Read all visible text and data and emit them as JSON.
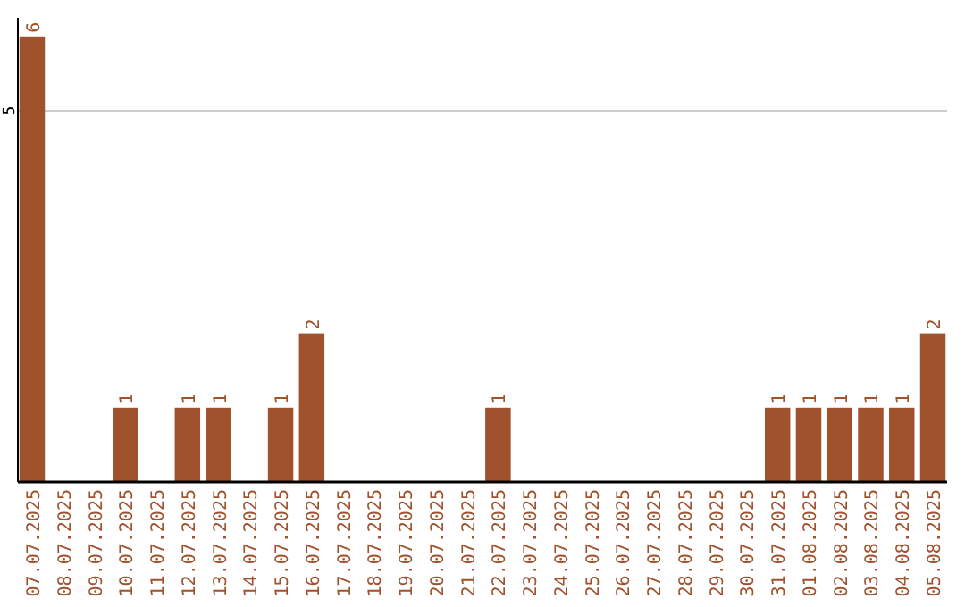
{
  "chart_data": {
    "type": "bar",
    "categories": [
      "07.07.2025",
      "08.07.2025",
      "09.07.2025",
      "10.07.2025",
      "11.07.2025",
      "12.07.2025",
      "13.07.2025",
      "14.07.2025",
      "15.07.2025",
      "16.07.2025",
      "17.07.2025",
      "18.07.2025",
      "19.07.2025",
      "20.07.2025",
      "21.07.2025",
      "22.07.2025",
      "23.07.2025",
      "24.07.2025",
      "25.07.2025",
      "26.07.2025",
      "27.07.2025",
      "28.07.2025",
      "29.07.2025",
      "30.07.2025",
      "31.07.2025",
      "01.08.2025",
      "02.08.2025",
      "03.08.2025",
      "04.08.2025",
      "05.08.2025"
    ],
    "values": [
      6,
      0,
      0,
      1,
      0,
      1,
      1,
      0,
      1,
      2,
      0,
      0,
      0,
      0,
      0,
      1,
      0,
      0,
      0,
      0,
      0,
      0,
      0,
      0,
      1,
      1,
      1,
      1,
      1,
      2
    ],
    "value_labels": [
      "6",
      null,
      null,
      "1",
      null,
      "1",
      "1",
      null,
      "1",
      "2",
      null,
      null,
      null,
      null,
      null,
      "1",
      null,
      null,
      null,
      null,
      null,
      null,
      null,
      null,
      "1",
      "1",
      "1",
      "1",
      "1",
      "2"
    ],
    "color": "#a0522d",
    "ylim": [
      0,
      6.25
    ],
    "yticks": [
      5
    ],
    "grid": "y"
  }
}
